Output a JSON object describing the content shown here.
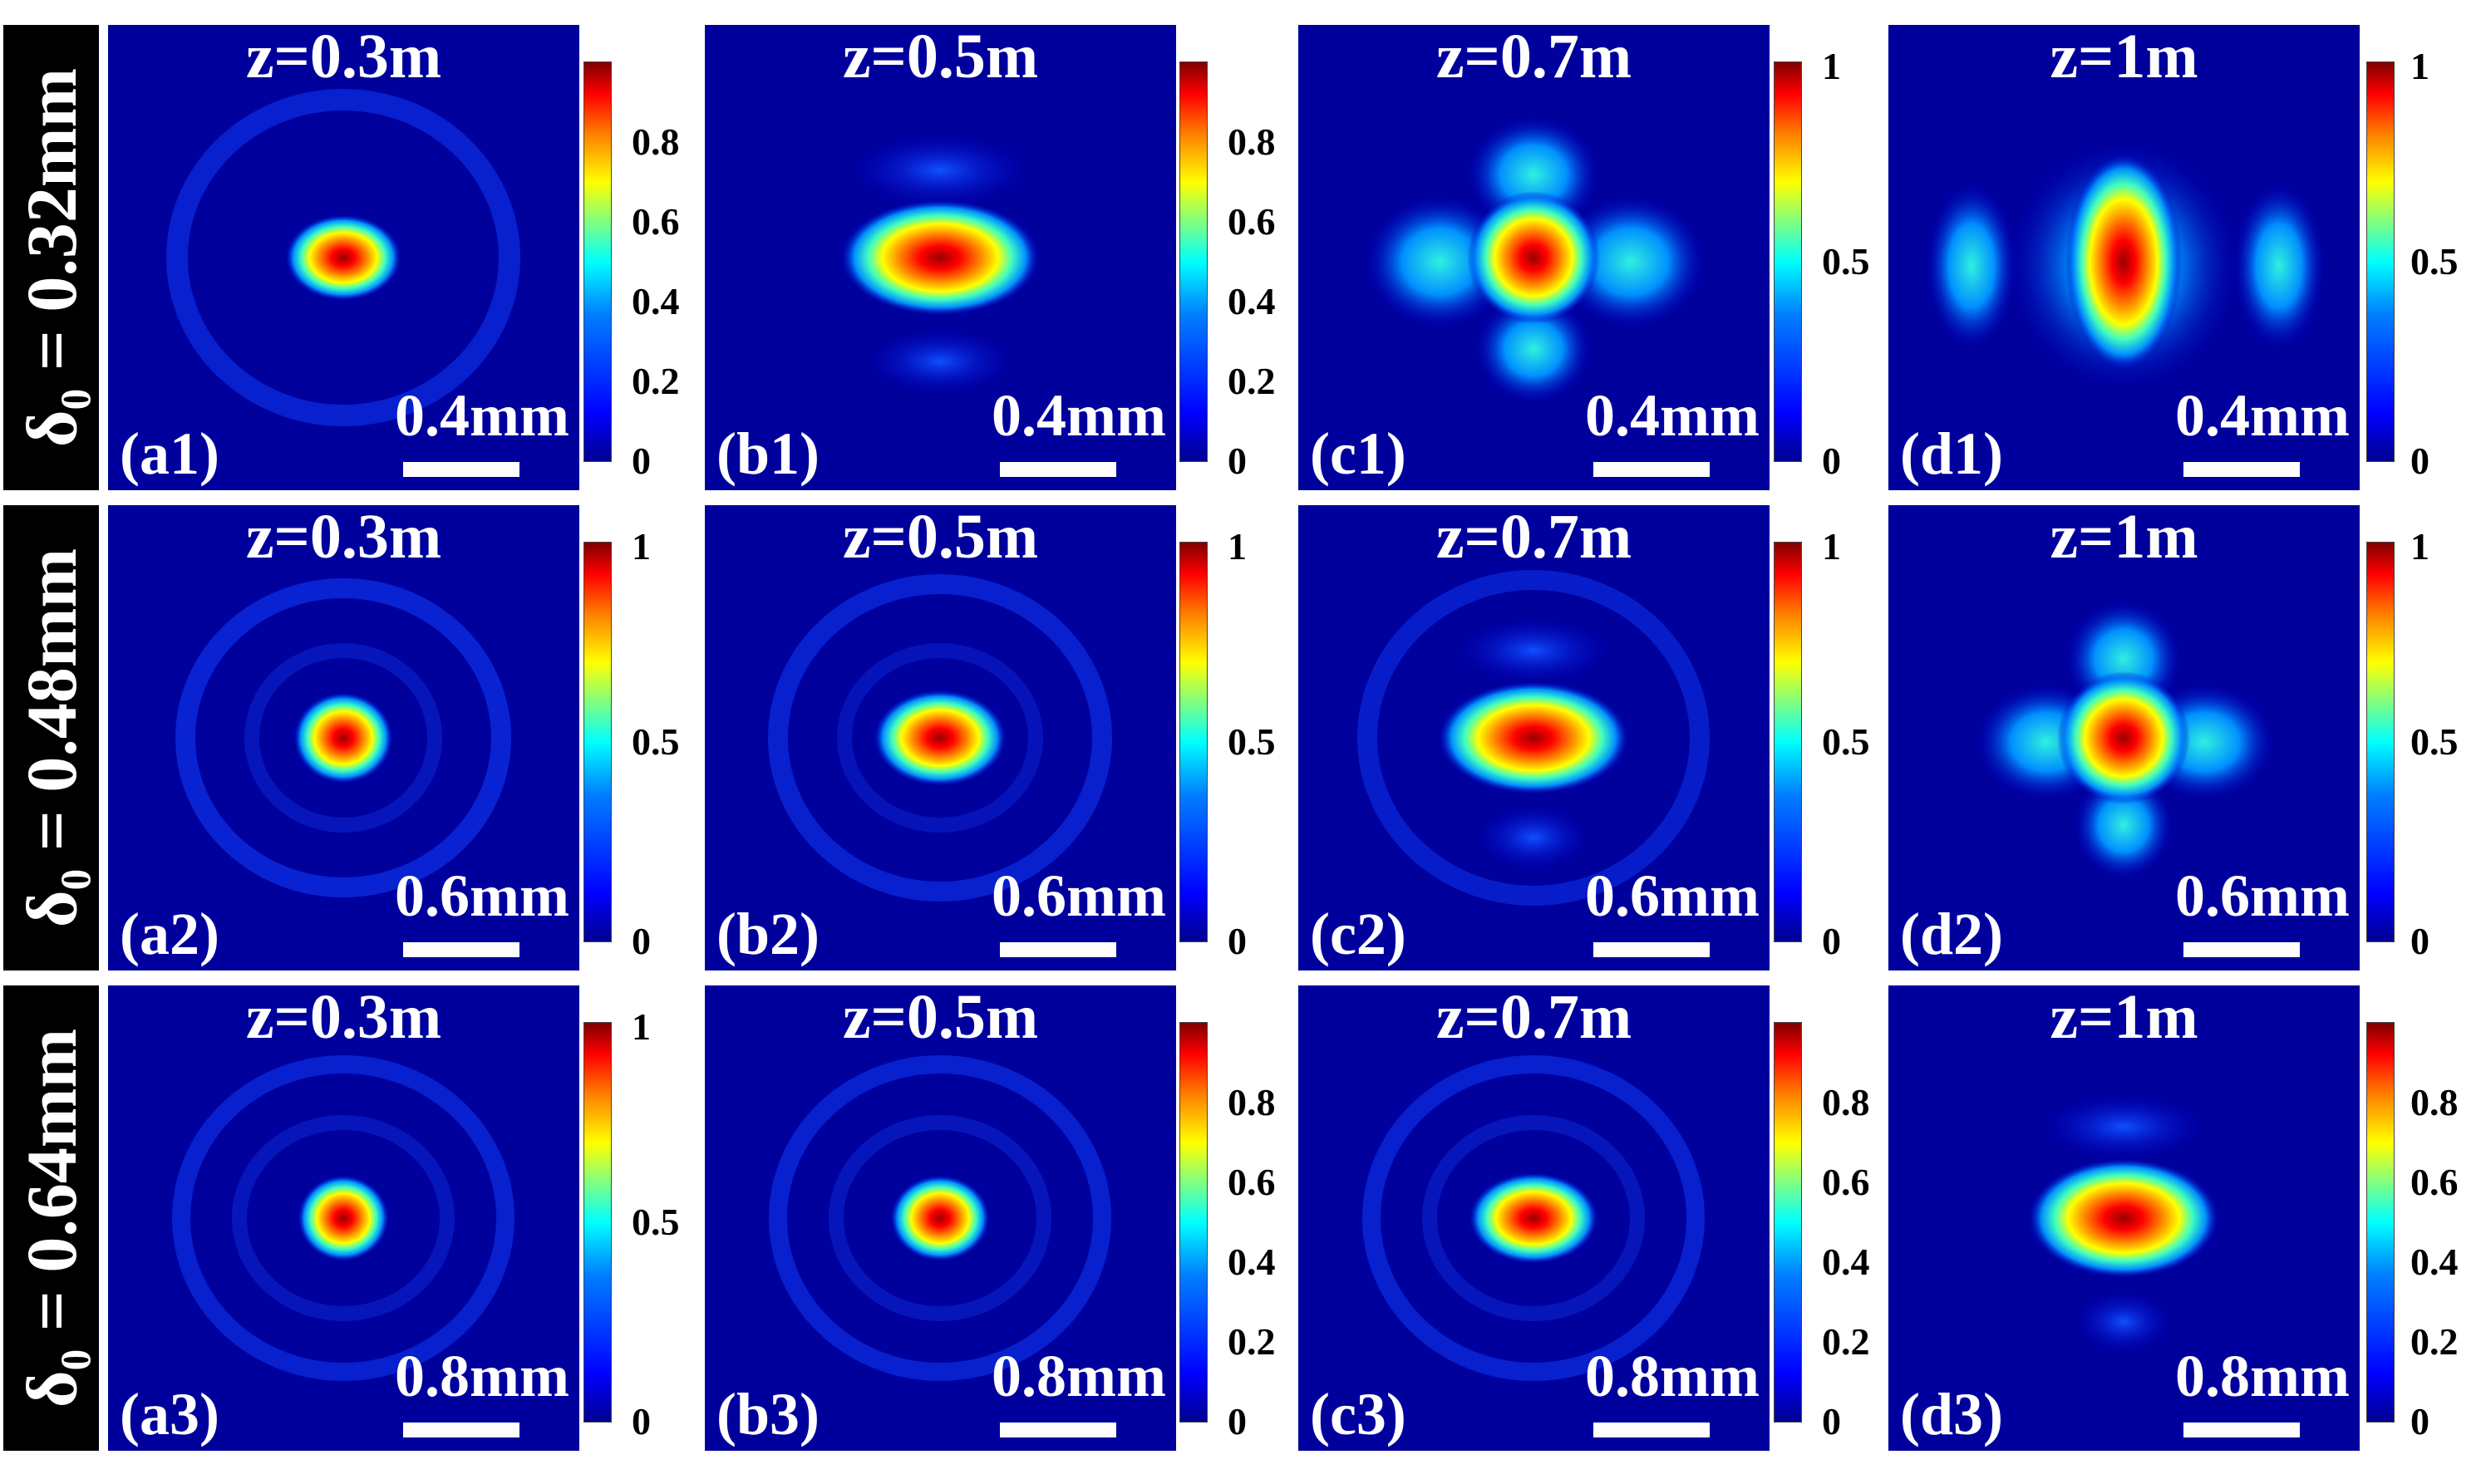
{
  "rows": [
    {
      "label": "δ₀ = 0.32mm",
      "scale": "0.4mm",
      "panels": [
        {
          "z": "z=0.3m",
          "id": "(a1)",
          "ticks": [
            "0.8",
            "0.6",
            "0.4",
            "0.2",
            "0"
          ]
        },
        {
          "z": "z=0.5m",
          "id": "(b1)",
          "ticks": [
            "0.8",
            "0.6",
            "0.4",
            "0.2",
            "0"
          ]
        },
        {
          "z": "z=0.7m",
          "id": "(c1)",
          "ticks": [
            "1",
            "0.5",
            "0"
          ]
        },
        {
          "z": "z=1m",
          "id": "(d1)",
          "ticks": [
            "1",
            "0.5",
            "0"
          ]
        }
      ]
    },
    {
      "label": "δ₀ = 0.48mm",
      "scale": "0.6mm",
      "panels": [
        {
          "z": "z=0.3m",
          "id": "(a2)",
          "ticks": [
            "1",
            "0.5",
            "0"
          ]
        },
        {
          "z": "z=0.5m",
          "id": "(b2)",
          "ticks": [
            "1",
            "0.5",
            "0"
          ]
        },
        {
          "z": "z=0.7m",
          "id": "(c2)",
          "ticks": [
            "1",
            "0.5",
            "0"
          ]
        },
        {
          "z": "z=1m",
          "id": "(d2)",
          "ticks": [
            "1",
            "0.5",
            "0"
          ]
        }
      ]
    },
    {
      "label": "δ₀ = 0.64mm",
      "scale": "0.8mm",
      "panels": [
        {
          "z": "z=0.3m",
          "id": "(a3)",
          "ticks": [
            "1",
            "0.5",
            "0"
          ]
        },
        {
          "z": "z=0.5m",
          "id": "(b3)",
          "ticks": [
            "0.8",
            "0.6",
            "0.4",
            "0.2",
            "0"
          ]
        },
        {
          "z": "z=0.7m",
          "id": "(c3)",
          "ticks": [
            "0.8",
            "0.6",
            "0.4",
            "0.2",
            "0"
          ]
        },
        {
          "z": "z=1m",
          "id": "(d3)",
          "ticks": [
            "0.8",
            "0.6",
            "0.4",
            "0.2",
            "0"
          ]
        }
      ]
    }
  ],
  "colormap": "jet"
}
